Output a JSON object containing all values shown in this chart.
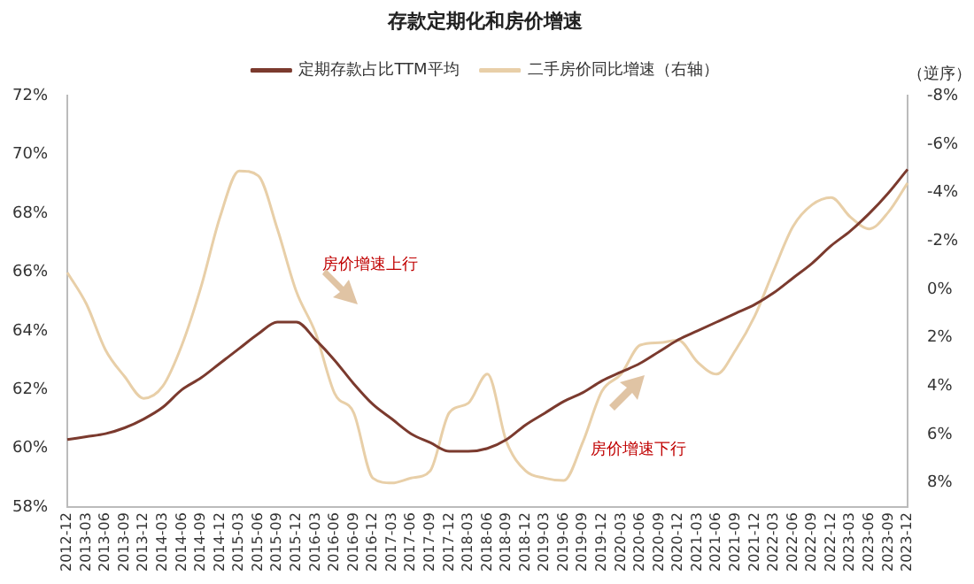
{
  "chart_data": {
    "type": "line",
    "title": "存款定期化和房价增速",
    "y2label": "（逆序）",
    "categories": [
      "2012-12",
      "2013-03",
      "2013-06",
      "2013-09",
      "2013-12",
      "2014-03",
      "2014-06",
      "2014-09",
      "2014-12",
      "2015-03",
      "2015-06",
      "2015-09",
      "2015-12",
      "2016-03",
      "2016-06",
      "2016-09",
      "2016-12",
      "2017-03",
      "2017-06",
      "2017-09",
      "2017-12",
      "2018-03",
      "2018-06",
      "2018-09",
      "2018-12",
      "2019-03",
      "2019-06",
      "2019-09",
      "2019-12",
      "2020-03",
      "2020-06",
      "2020-09",
      "2020-12",
      "2021-03",
      "2021-06",
      "2021-09",
      "2021-12",
      "2022-03",
      "2022-06",
      "2022-09",
      "2022-12",
      "2023-03",
      "2023-06",
      "2023-09",
      "2023-12"
    ],
    "series": [
      {
        "name": "定期存款占比TTM平均",
        "color": "#7b3a2e",
        "values": [
          60.3,
          60.4,
          60.5,
          60.7,
          61.0,
          61.4,
          62.0,
          62.4,
          62.9,
          63.4,
          63.9,
          64.3,
          64.3,
          63.7,
          63.0,
          62.2,
          61.5,
          61.0,
          60.5,
          60.2,
          59.9,
          59.9,
          60.0,
          60.3,
          60.8,
          61.2,
          61.6,
          61.9,
          62.3,
          62.6,
          62.9,
          63.3,
          63.7,
          64.0,
          64.3,
          64.6,
          64.9,
          65.3,
          65.8,
          66.3,
          66.9,
          67.4,
          68.0,
          68.7,
          69.5
        ]
      },
      {
        "name": "二手房价同比增速（右轴）",
        "color": "#e8cfa8",
        "axis": "y2",
        "values": [
          -0.7,
          0.6,
          2.5,
          3.6,
          4.5,
          4.0,
          2.3,
          -0.1,
          -3.0,
          -4.9,
          -4.7,
          -2.5,
          0.1,
          1.8,
          4.3,
          5.1,
          7.8,
          8.0,
          7.8,
          7.5,
          5.1,
          4.7,
          3.5,
          6.3,
          7.5,
          7.8,
          7.9,
          6.3,
          4.2,
          3.5,
          2.3,
          2.2,
          2.1,
          3.0,
          3.5,
          2.5,
          1.1,
          -0.8,
          -2.6,
          -3.5,
          -3.8,
          -3.0,
          -2.5,
          -3.2,
          -4.4
        ]
      }
    ],
    "ylim": [
      58,
      72
    ],
    "yticks": [
      {
        "value": 58,
        "label": "58%"
      },
      {
        "value": 60,
        "label": "60%"
      },
      {
        "value": 62,
        "label": "62%"
      },
      {
        "value": 64,
        "label": "64%"
      },
      {
        "value": 66,
        "label": "66%"
      },
      {
        "value": 68,
        "label": "68%"
      },
      {
        "value": 70,
        "label": "70%"
      },
      {
        "value": 72,
        "label": "72%"
      }
    ],
    "y2lim": [
      9,
      -8
    ],
    "y2ticks": [
      {
        "value": -8,
        "label": "-8%"
      },
      {
        "value": -6,
        "label": "-6%"
      },
      {
        "value": -4,
        "label": "-4%"
      },
      {
        "value": -2,
        "label": "-2%"
      },
      {
        "value": 0,
        "label": "0%"
      },
      {
        "value": 2,
        "label": "2%"
      },
      {
        "value": 4,
        "label": "4%"
      },
      {
        "value": 6,
        "label": "6%"
      },
      {
        "value": 8,
        "label": "8%"
      }
    ],
    "annotations": [
      "房价增速上行",
      "房价增速下行"
    ],
    "grid": false,
    "legend": "top",
    "marker": "none",
    "line_style": "solid"
  }
}
